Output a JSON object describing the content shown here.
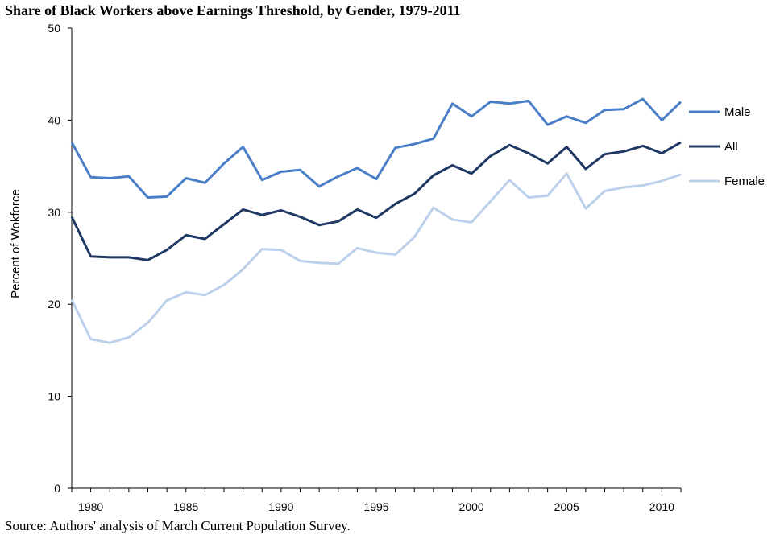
{
  "chart_data": {
    "type": "line",
    "title": "Share of Black Workers above Earnings Threshold, by Gender, 1979-2011",
    "xlabel": "",
    "ylabel": "Percent of Wokforce",
    "source": "Source: Authors' analysis of March Current Population Survey.",
    "xlim": [
      1979,
      2011
    ],
    "ylim": [
      0,
      50
    ],
    "x_ticks": [
      1980,
      1985,
      1990,
      1995,
      2000,
      2005,
      2010
    ],
    "y_ticks": [
      0,
      10,
      20,
      30,
      40,
      50
    ],
    "grid": false,
    "legend": "right, at line ends",
    "x": [
      1979,
      1980,
      1981,
      1982,
      1983,
      1984,
      1985,
      1986,
      1987,
      1988,
      1989,
      1990,
      1991,
      1992,
      1993,
      1994,
      1995,
      1996,
      1997,
      1998,
      1999,
      2000,
      2001,
      2002,
      2003,
      2004,
      2005,
      2006,
      2007,
      2008,
      2009,
      2010,
      2011
    ],
    "series": [
      {
        "name": "Male",
        "color": "#4a7fc8",
        "values": [
          37.6,
          33.8,
          33.7,
          33.9,
          31.6,
          31.7,
          33.7,
          33.2,
          35.3,
          37.1,
          33.5,
          34.4,
          34.6,
          32.8,
          33.9,
          34.8,
          33.6,
          37.0,
          37.4,
          38.0,
          41.8,
          40.4,
          42.0,
          41.8,
          42.1,
          39.5,
          40.4,
          39.7,
          41.1,
          41.2,
          42.3,
          40.0,
          42.0
        ]
      },
      {
        "name": "All",
        "color": "#1f3864",
        "values": [
          29.5,
          25.2,
          25.1,
          25.1,
          24.8,
          25.9,
          27.5,
          27.1,
          28.7,
          30.3,
          29.7,
          30.2,
          29.5,
          28.6,
          29.0,
          30.3,
          29.4,
          30.9,
          32.0,
          34.0,
          35.1,
          34.2,
          36.1,
          37.3,
          36.4,
          35.3,
          37.1,
          34.7,
          36.3,
          36.6,
          37.2,
          36.4,
          37.6
        ]
      },
      {
        "name": "Female",
        "color": "#bcd0eb",
        "values": [
          20.5,
          16.2,
          15.8,
          16.4,
          18.0,
          20.4,
          21.3,
          21.0,
          22.1,
          23.8,
          26.0,
          25.9,
          24.7,
          24.5,
          24.4,
          26.1,
          25.6,
          25.4,
          27.3,
          30.5,
          29.2,
          28.9,
          31.2,
          33.5,
          31.6,
          31.8,
          34.2,
          30.4,
          32.3,
          32.7,
          32.9,
          33.4,
          34.1
        ]
      }
    ]
  }
}
